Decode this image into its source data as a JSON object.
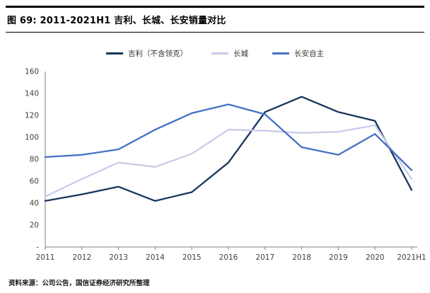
{
  "header": {
    "title": "图 69:  2011-2021H1 吉利、长城、长安销量对比"
  },
  "footer": {
    "source": "资料来源：公司公告，国信证券经济研究所整理"
  },
  "colors": {
    "geely": "#17365D",
    "greatwall": "#C9CCE9",
    "changan": "#4472C4",
    "axis": "#7f7f7f",
    "header_rule": "#000000"
  },
  "chart_data": {
    "type": "line",
    "title": "图 69:  2011-2021H1 吉利、长城、长安销量对比",
    "categories": [
      "2011",
      "2012",
      "2013",
      "2014",
      "2015",
      "2016",
      "2017",
      "2018",
      "2019",
      "2020",
      "2021H1"
    ],
    "series": [
      {
        "name": "吉利（不含领克）",
        "color": "#17365D",
        "values": [
          42,
          48,
          55,
          42,
          50,
          77,
          123,
          137,
          123,
          115,
          52
        ]
      },
      {
        "name": "长城",
        "color": "#C9CCE9",
        "values": [
          46,
          62,
          77,
          73,
          85,
          107,
          106,
          104,
          105,
          111,
          62
        ]
      },
      {
        "name": "长安自主",
        "color": "#4472C4",
        "values": [
          82,
          84,
          89,
          107,
          122,
          130,
          121,
          91,
          84,
          103,
          70
        ]
      }
    ],
    "xlabel": "",
    "ylabel": "",
    "ylim": [
      0,
      160
    ],
    "yticks": [
      0,
      20,
      40,
      60,
      80,
      100,
      120,
      140,
      160
    ],
    "ytick_labels": [
      "-",
      "20",
      "40",
      "60",
      "80",
      "100",
      "120",
      "140",
      "160"
    ],
    "grid": false,
    "legend_position": "top-center"
  }
}
